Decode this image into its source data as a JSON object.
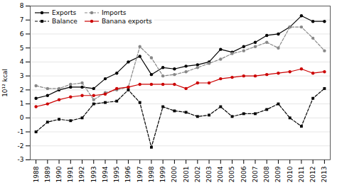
{
  "chart_data": {
    "type": "line",
    "x": [
      1988,
      1989,
      1990,
      1991,
      1992,
      1993,
      1994,
      1995,
      1996,
      1997,
      1998,
      1999,
      2000,
      2001,
      2002,
      2003,
      2004,
      2005,
      2006,
      2007,
      2008,
      2009,
      2010,
      2011,
      2012,
      2013
    ],
    "series": [
      {
        "name": "Exports",
        "color": "#000000",
        "marker": "circle",
        "line_style": "solid",
        "values": [
          1.4,
          1.6,
          2.0,
          2.2,
          2.2,
          2.1,
          2.8,
          3.2,
          4.0,
          4.4,
          3.1,
          3.6,
          3.5,
          3.7,
          3.8,
          4.0,
          4.9,
          4.7,
          5.1,
          5.4,
          5.9,
          6.0,
          6.5,
          7.3,
          6.9,
          6.9
        ]
      },
      {
        "name": "Imports",
        "color": "#888888",
        "marker": "circle",
        "line_style": "dashed",
        "values": [
          2.3,
          2.1,
          2.1,
          2.4,
          2.5,
          1.3,
          1.8,
          2.0,
          2.2,
          5.1,
          4.3,
          3.0,
          3.1,
          3.3,
          3.6,
          3.9,
          4.2,
          4.6,
          4.8,
          5.1,
          5.4,
          5.0,
          6.5,
          6.5,
          5.7,
          4.8
        ]
      },
      {
        "name": "Balance",
        "color": "#000000",
        "marker": "square",
        "line_style": "dashed",
        "values": [
          -1.0,
          -0.3,
          -0.1,
          -0.2,
          0.0,
          1.0,
          1.1,
          1.2,
          2.0,
          1.1,
          -2.1,
          0.8,
          0.5,
          0.4,
          0.1,
          0.2,
          0.8,
          0.1,
          0.3,
          0.3,
          0.6,
          1.0,
          0.0,
          -0.6,
          1.4,
          2.1
        ]
      },
      {
        "name": "Banana exports",
        "color": "#cc0000",
        "marker": "circle",
        "line_style": "solid",
        "values": [
          0.8,
          1.0,
          1.3,
          1.5,
          1.6,
          1.6,
          1.7,
          2.1,
          2.2,
          2.4,
          2.4,
          2.4,
          2.4,
          2.1,
          2.5,
          2.5,
          2.8,
          2.9,
          3.0,
          3.0,
          3.1,
          3.2,
          3.3,
          3.5,
          3.2,
          3.3
        ]
      }
    ],
    "ylabel": "10¹² kcal",
    "xlim": [
      1987.5,
      2013.5
    ],
    "xticks": [
      1988,
      1989,
      1990,
      1991,
      1992,
      1993,
      1994,
      1995,
      1996,
      1997,
      1998,
      1999,
      2000,
      2001,
      2002,
      2003,
      2004,
      2005,
      2006,
      2007,
      2008,
      2009,
      2010,
      2011,
      2012,
      2013
    ],
    "ylim": [
      -3.0,
      8.0
    ],
    "yticks": [
      -3,
      -2,
      -1,
      0,
      1,
      2,
      3,
      4,
      5,
      6,
      7,
      8
    ],
    "grid": true,
    "legend": "upper left"
  }
}
